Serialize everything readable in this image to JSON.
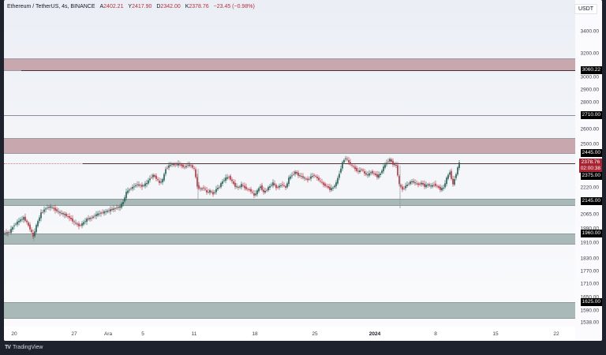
{
  "header": {
    "symbol": "Ethereum / TetherUS, 4s, BINANCE",
    "ohlc": [
      {
        "key": "A",
        "value": "2402.21"
      },
      {
        "key": "Y",
        "value": "2417.90"
      },
      {
        "key": "D",
        "value": "2342.00"
      },
      {
        "key": "K",
        "value": "2378.76"
      }
    ],
    "change": "−23.45 (−0.98%)"
  },
  "currency_button": "USDT",
  "colors": {
    "up": "#1e5c52",
    "down": "#b2303d",
    "zone_red": "#c8a8ae",
    "zone_green": "#a8b9b7",
    "background": "#1e222d"
  },
  "price_scale": {
    "ticks": [
      "3400.00",
      "3200.00",
      "3000.00",
      "2900.00",
      "2800.00",
      "2600.00",
      "2500.00",
      "2220.00",
      "2065.00",
      "1990.00",
      "1910.00",
      "1830.00",
      "1770.00",
      "1710.00",
      "1650.00",
      "1590.00",
      "1538.00"
    ],
    "tags": [
      {
        "label": "3060.22",
        "style": "black"
      },
      {
        "label": "2710.00",
        "style": "black"
      },
      {
        "label": "2445.00",
        "style": "black"
      },
      {
        "label": "2375.00",
        "style": "black"
      },
      {
        "label": "2145.00",
        "style": "black"
      },
      {
        "label": "1960.00",
        "style": "black"
      },
      {
        "label": "1625.00",
        "style": "black"
      }
    ],
    "last_price": "2378.76",
    "countdown": "02:00:38"
  },
  "time_scale": {
    "labels": [
      "20",
      "27",
      "Ara",
      "5",
      "11",
      "18",
      "25",
      "2024",
      "8",
      "15",
      "22"
    ]
  },
  "footer": {
    "brand": "TradingView",
    "logo": "TV"
  },
  "zones": [
    {
      "name": "supply-zone-top",
      "type": "red"
    },
    {
      "name": "supply-zone-2445-2500",
      "type": "red"
    },
    {
      "name": "demand-zone-2145",
      "type": "green"
    },
    {
      "name": "demand-zone-1960",
      "type": "green"
    },
    {
      "name": "demand-zone-1625",
      "type": "green"
    }
  ]
}
